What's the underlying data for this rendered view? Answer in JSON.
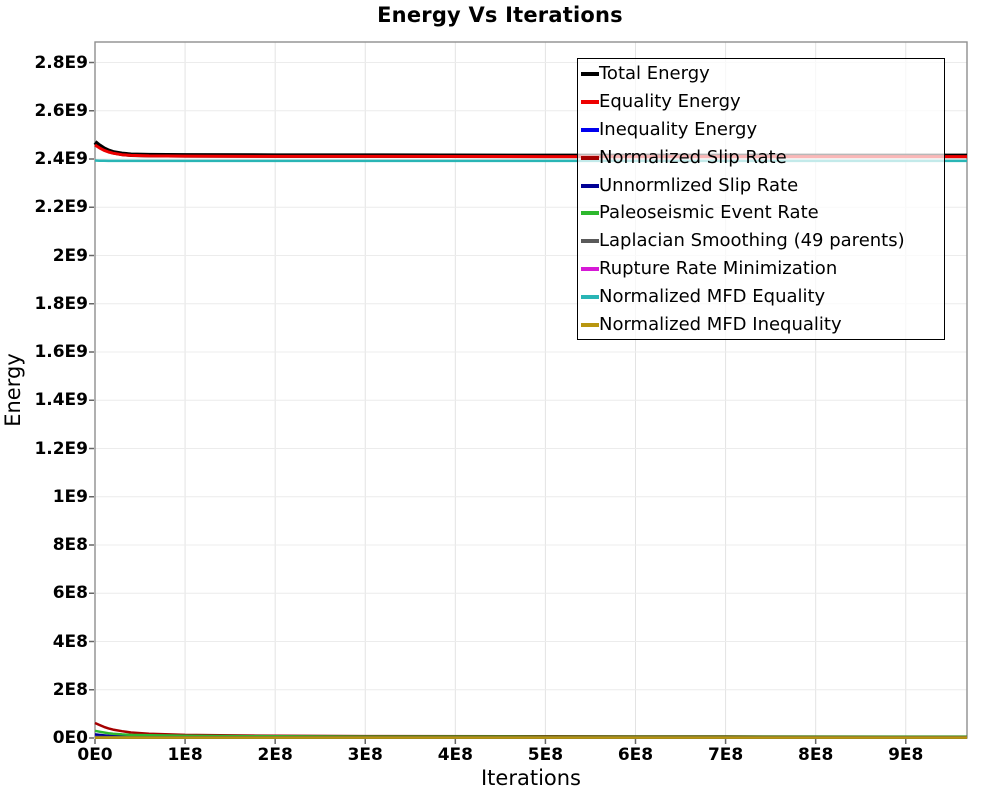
{
  "chart_data": {
    "type": "line",
    "title": "Energy Vs Iterations",
    "xlabel": "Iterations",
    "ylabel": "Energy",
    "xlim": [
      0,
      968000000
    ],
    "ylim": [
      0,
      2885000000
    ],
    "grid": true,
    "legend_position": "top-right",
    "x_tick_values": [
      0,
      100000000,
      200000000,
      300000000,
      400000000,
      500000000,
      600000000,
      700000000,
      800000000,
      900000000
    ],
    "x_tick_labels": [
      "0E0",
      "1E8",
      "2E8",
      "3E8",
      "4E8",
      "5E8",
      "6E8",
      "7E8",
      "8E8",
      "9E8"
    ],
    "y_tick_values": [
      0,
      200000000,
      400000000,
      600000000,
      800000000,
      1000000000,
      1200000000,
      1400000000,
      1600000000,
      1800000000,
      2000000000,
      2200000000,
      2400000000,
      2600000000,
      2800000000
    ],
    "y_tick_labels": [
      "0E0",
      "2E8",
      "4E8",
      "6E8",
      "8E8",
      "1E9",
      "1.2E9",
      "1.4E9",
      "1.6E9",
      "1.8E9",
      "2E9",
      "2.2E9",
      "2.4E9",
      "2.6E9",
      "2.8E9"
    ],
    "x": [
      0,
      5000000,
      10000000,
      15000000,
      20000000,
      30000000,
      40000000,
      60000000,
      100000000,
      200000000,
      300000000,
      500000000,
      700000000,
      900000000,
      968000000
    ],
    "series": [
      {
        "name": "Total Energy",
        "color": "#000000",
        "width": 4.5,
        "y": [
          2470000000,
          2455000000,
          2443000000,
          2434000000,
          2428000000,
          2421000000,
          2418000000,
          2416000000,
          2415000000,
          2414000000,
          2414000000,
          2413000000,
          2413000000,
          2413000000,
          2413000000
        ]
      },
      {
        "name": "Equality Energy",
        "color": "#ee0000",
        "width": 3,
        "y": [
          2458000000,
          2446000000,
          2436000000,
          2429000000,
          2424000000,
          2418000000,
          2415000000,
          2413000000,
          2412000000,
          2411000000,
          2411000000,
          2410000000,
          2410000000,
          2410000000,
          2410000000
        ]
      },
      {
        "name": "Inequality Energy",
        "color": "#0000ee",
        "width": 2,
        "y": [
          12000000,
          10000000,
          8000000,
          7000000,
          6000000,
          5000000,
          4000000,
          3500000,
          3000000,
          2500000,
          2500000,
          2500000,
          2500000,
          2500000,
          2500000
        ]
      },
      {
        "name": "Normalized Slip Rate",
        "color": "#a50000",
        "width": 2.5,
        "y": [
          62000000,
          54000000,
          46000000,
          40000000,
          35000000,
          28000000,
          23000000,
          18000000,
          13000000,
          9000000,
          8000000,
          7000000,
          6500000,
          6000000,
          6000000
        ]
      },
      {
        "name": "Unnormlized Slip Rate",
        "color": "#000095",
        "width": 2,
        "y": [
          16000000,
          14000000,
          12000000,
          10500000,
          9500000,
          8000000,
          7000000,
          6000000,
          5000000,
          4000000,
          3500000,
          3500000,
          3500000,
          3500000,
          3500000
        ]
      },
      {
        "name": "Paleoseismic Event Rate",
        "color": "#2eb82e",
        "width": 2.5,
        "y": [
          30000000,
          26000000,
          23000000,
          20000000,
          18000000,
          15000000,
          13000000,
          11000000,
          9000000,
          7000000,
          6000000,
          5500000,
          5000000,
          5000000,
          5000000
        ]
      },
      {
        "name": "Laplacian Smoothing (49 parents)",
        "color": "#5a5a5a",
        "width": 2,
        "y": [
          5000000,
          4800000,
          4600000,
          4500000,
          4400000,
          4300000,
          4200000,
          4100000,
          4000000,
          4000000,
          4000000,
          4000000,
          4000000,
          4000000,
          4000000
        ]
      },
      {
        "name": "Rupture Rate Minimization",
        "color": "#d619d6",
        "width": 2,
        "y": [
          2200000,
          2200000,
          2200000,
          2200000,
          2200000,
          2200000,
          2200000,
          2200000,
          2200000,
          2200000,
          2200000,
          2200000,
          2200000,
          2200000,
          2200000
        ]
      },
      {
        "name": "Normalized MFD Equality",
        "color": "#29b5b5",
        "width": 2.5,
        "y": [
          2394000000,
          2393000000,
          2393000000,
          2392000000,
          2392000000,
          2392000000,
          2392000000,
          2392000000,
          2392000000,
          2392000000,
          2392000000,
          2392000000,
          2392000000,
          2392000000,
          2392000000
        ]
      },
      {
        "name": "Normalized MFD Inequality",
        "color": "#b8960f",
        "width": 2.5,
        "y": [
          1500000,
          1500000,
          1500000,
          1500000,
          1500000,
          1500000,
          1500000,
          1500000,
          1500000,
          1500000,
          1500000,
          1500000,
          1500000,
          1500000,
          1500000
        ]
      }
    ]
  }
}
